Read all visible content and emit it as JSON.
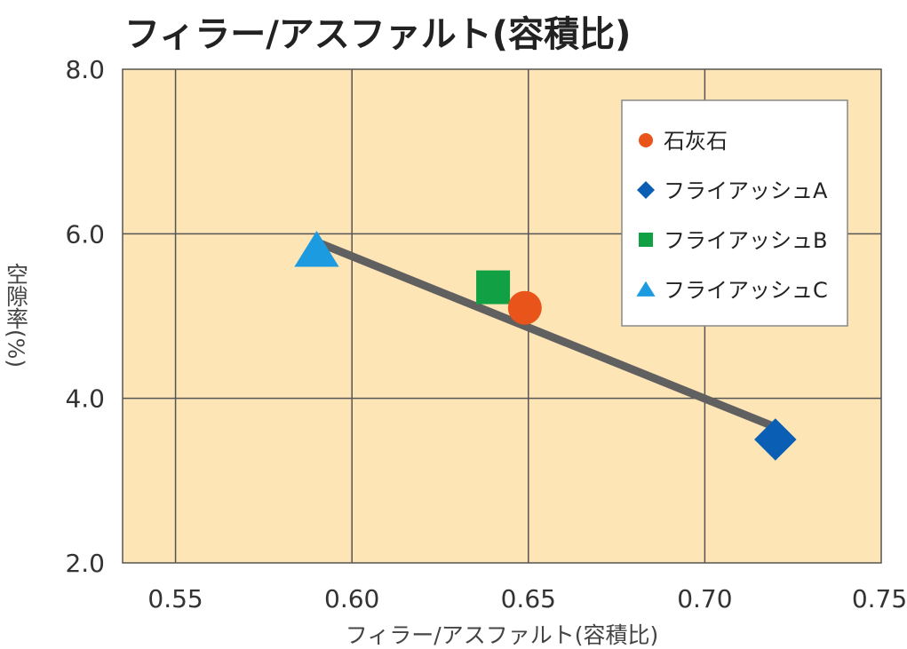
{
  "chart_data": {
    "type": "scatter",
    "title": "フィラー/アスファルト(容積比)",
    "xlabel": "フィラー/アスファルト(容積比)",
    "ylabel": "空隙率(%)",
    "xlim": [
      0.535,
      0.75
    ],
    "ylim": [
      2.0,
      8.0
    ],
    "x_ticks": [
      0.55,
      0.6,
      0.65,
      0.7,
      0.75
    ],
    "x_tick_labels": [
      "0.55",
      "0.60",
      "0.65",
      "0.70",
      "0.75"
    ],
    "y_ticks": [
      2.0,
      4.0,
      6.0,
      8.0
    ],
    "y_tick_labels": [
      "2.0",
      "4.0",
      "6.0",
      "8.0"
    ],
    "grid": true,
    "legend_position": "top-right",
    "series": [
      {
        "name": "石灰石",
        "marker": "circle",
        "color": "#e8541a",
        "x": [
          0.649
        ],
        "y": [
          5.1
        ]
      },
      {
        "name": "フライアッシュA",
        "marker": "diamond",
        "color": "#0a5fb4",
        "x": [
          0.72
        ],
        "y": [
          3.5
        ]
      },
      {
        "name": "フライアッシュB",
        "marker": "square",
        "color": "#11a043",
        "x": [
          0.64
        ],
        "y": [
          5.35
        ]
      },
      {
        "name": "フライアッシュC",
        "marker": "triangle",
        "color": "#1d9be0",
        "x": [
          0.59
        ],
        "y": [
          5.8
        ]
      }
    ],
    "trendline": {
      "x": [
        0.59,
        0.72
      ],
      "y": [
        5.9,
        3.65
      ],
      "color": "#606060"
    },
    "background_color": "#fde5b6"
  }
}
